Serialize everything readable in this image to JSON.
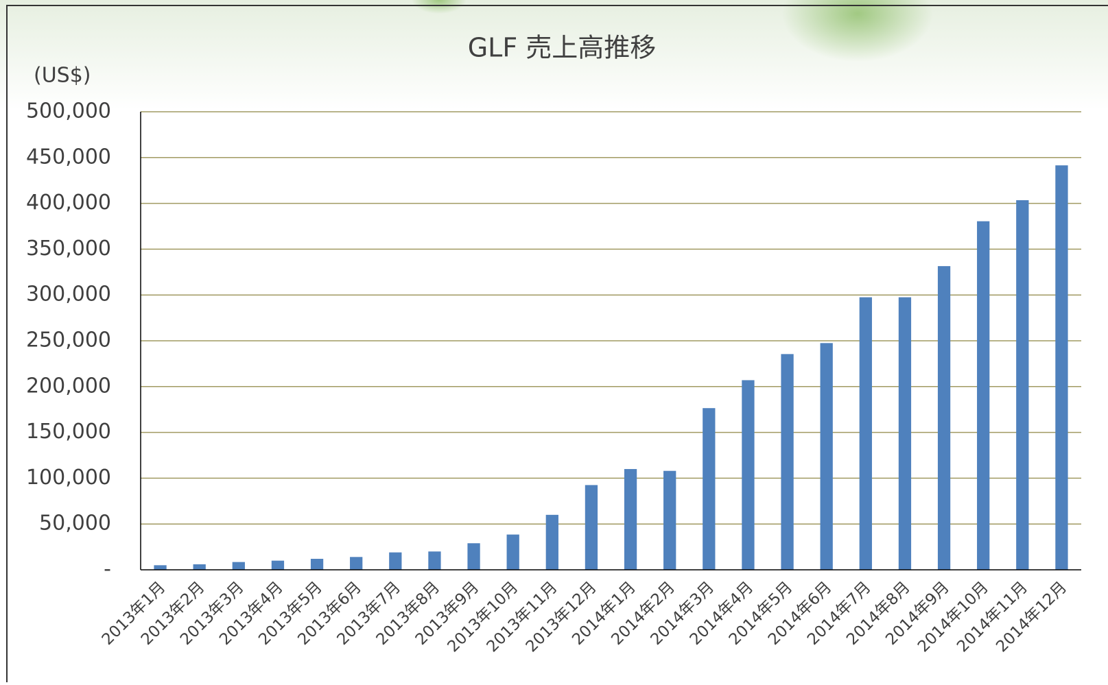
{
  "chart_data": {
    "type": "bar",
    "title": "GLF 売上高推移",
    "y_axis_label": "(US$)",
    "categories": [
      "2013年1月",
      "2013年2月",
      "2013年3月",
      "2013年4月",
      "2013年5月",
      "2013年6月",
      "2013年7月",
      "2013年8月",
      "2013年9月",
      "2013年10月",
      "2013年11月",
      "2013年12月",
      "2014年1月",
      "2014年2月",
      "2014年3月",
      "2014年4月",
      "2014年5月",
      "2014年6月",
      "2014年7月",
      "2014年8月",
      "2014年9月",
      "2014年10月",
      "2014年11月",
      "2014年12月"
    ],
    "values": [
      5000,
      6000,
      8500,
      10000,
      12000,
      14000,
      19000,
      20000,
      29000,
      38500,
      60000,
      92500,
      110000,
      108000,
      176500,
      207000,
      235500,
      247500,
      297500,
      297500,
      331500,
      380500,
      403500,
      441500
    ],
    "color": "#4f81bd",
    "ylim": [
      0,
      500000
    ],
    "yticks": [
      {
        "value": 0,
        "label": "-"
      },
      {
        "value": 50000,
        "label": "50,000"
      },
      {
        "value": 100000,
        "label": "100,000"
      },
      {
        "value": 150000,
        "label": "150,000"
      },
      {
        "value": 200000,
        "label": "200,000"
      },
      {
        "value": 250000,
        "label": "250,000"
      },
      {
        "value": 300000,
        "label": "300,000"
      },
      {
        "value": 350000,
        "label": "350,000"
      },
      {
        "value": 400000,
        "label": "400,000"
      },
      {
        "value": 450000,
        "label": "450,000"
      },
      {
        "value": 500000,
        "label": "500,000"
      }
    ],
    "grid": true
  }
}
